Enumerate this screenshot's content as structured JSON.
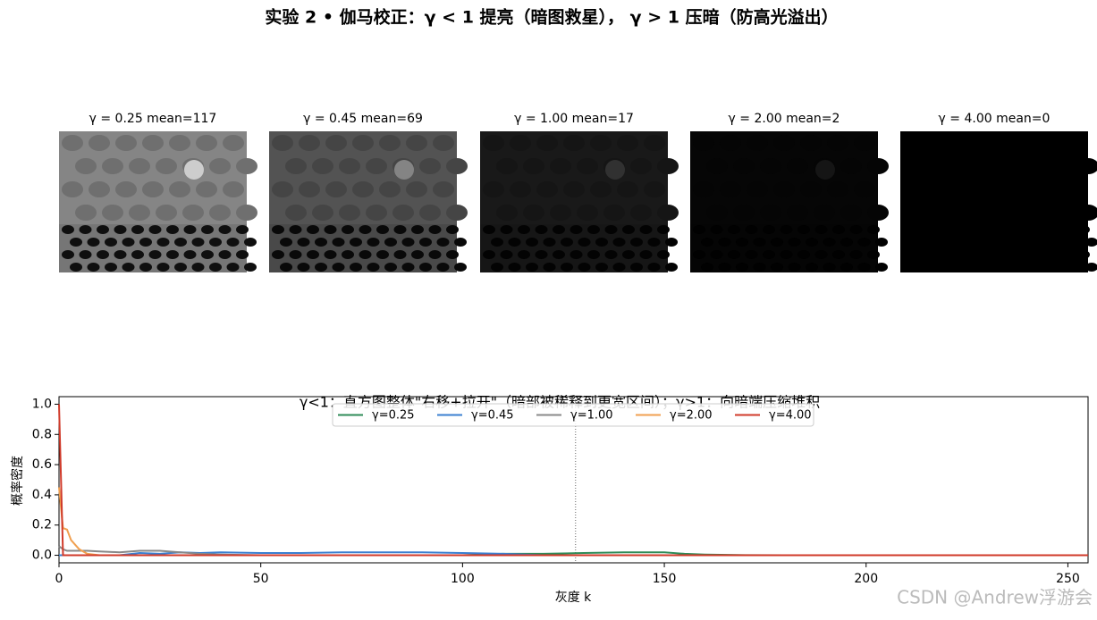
{
  "title": "实验 2 • 伽马校正：γ < 1 提亮（暗图救星）， γ > 1 压暗（防高光溢出）",
  "panels": [
    {
      "title": "γ = 0.25   mean=117"
    },
    {
      "title": "γ = 0.45   mean=69"
    },
    {
      "title": "γ = 1.00   mean=17"
    },
    {
      "title": "γ = 2.00   mean=2"
    },
    {
      "title": "γ = 4.00   mean=0"
    }
  ],
  "chart_data": {
    "type": "line",
    "title": "γ<1：直方图整体\"右移+拉开\"（暗部被稀释到更宽区间）；γ>1：向暗端压缩堆积",
    "x_label": "灰度 k",
    "y_label": "概率密度",
    "x": [
      0,
      1,
      2,
      3,
      5,
      7,
      10,
      15,
      20,
      25,
      30,
      35,
      40,
      50,
      60,
      70,
      80,
      90,
      100,
      110,
      120,
      130,
      140,
      150,
      155,
      160,
      170,
      180,
      200,
      255
    ],
    "series": [
      {
        "name": "γ=0.25",
        "color": "#2e8b57",
        "values": [
          0,
          0,
          0,
          0,
          0,
          0,
          0,
          0,
          0,
          0,
          0,
          0,
          0,
          0,
          0,
          0,
          0,
          0,
          0,
          0.01,
          0.01,
          0.015,
          0.02,
          0.02,
          0.01,
          0.005,
          0.001,
          0,
          0,
          0
        ]
      },
      {
        "name": "γ=0.45",
        "color": "#3a7fd0",
        "values": [
          0,
          0,
          0,
          0,
          0,
          0,
          0,
          0,
          0.015,
          0.01,
          0.02,
          0.015,
          0.02,
          0.015,
          0.015,
          0.02,
          0.02,
          0.02,
          0.015,
          0.01,
          0,
          0,
          0,
          0,
          0,
          0,
          0,
          0,
          0,
          0
        ]
      },
      {
        "name": "γ=1.00",
        "color": "#888888",
        "values": [
          0.06,
          0.04,
          0.03,
          0.03,
          0.03,
          0.03,
          0.025,
          0.02,
          0.03,
          0.03,
          0.02,
          0.01,
          0.005,
          0,
          0,
          0,
          0,
          0,
          0,
          0,
          0,
          0,
          0,
          0,
          0,
          0,
          0,
          0,
          0,
          0
        ]
      },
      {
        "name": "γ=2.00",
        "color": "#f0a050",
        "values": [
          0.45,
          0.18,
          0.17,
          0.1,
          0.04,
          0.01,
          0,
          0,
          0,
          0,
          0,
          0,
          0,
          0,
          0,
          0,
          0,
          0,
          0,
          0,
          0,
          0,
          0,
          0,
          0,
          0,
          0,
          0,
          0,
          0
        ]
      },
      {
        "name": "γ=4.00",
        "color": "#d03a2a",
        "values": [
          1.0,
          0,
          0,
          0,
          0,
          0,
          0,
          0,
          0,
          0,
          0,
          0,
          0,
          0,
          0,
          0,
          0,
          0,
          0,
          0,
          0,
          0,
          0,
          0,
          0,
          0,
          0,
          0,
          0,
          0
        ]
      }
    ],
    "xlim": [
      0,
      255
    ],
    "xticks": [
      0,
      50,
      100,
      150,
      200,
      250
    ],
    "ylim": [
      -0.05,
      1.05
    ],
    "yticks": [
      {
        "value": 0,
        "label": "0.0"
      },
      {
        "value": 0.2,
        "label": "0.2"
      },
      {
        "value": 0.4,
        "label": "0.4"
      },
      {
        "value": 0.6,
        "label": "0.6"
      },
      {
        "value": 0.8,
        "label": "0.8"
      },
      {
        "value": 1,
        "label": "1.0"
      }
    ],
    "vline": 128,
    "legend": "top-center"
  },
  "watermark": "CSDN @Andrew浮游会"
}
